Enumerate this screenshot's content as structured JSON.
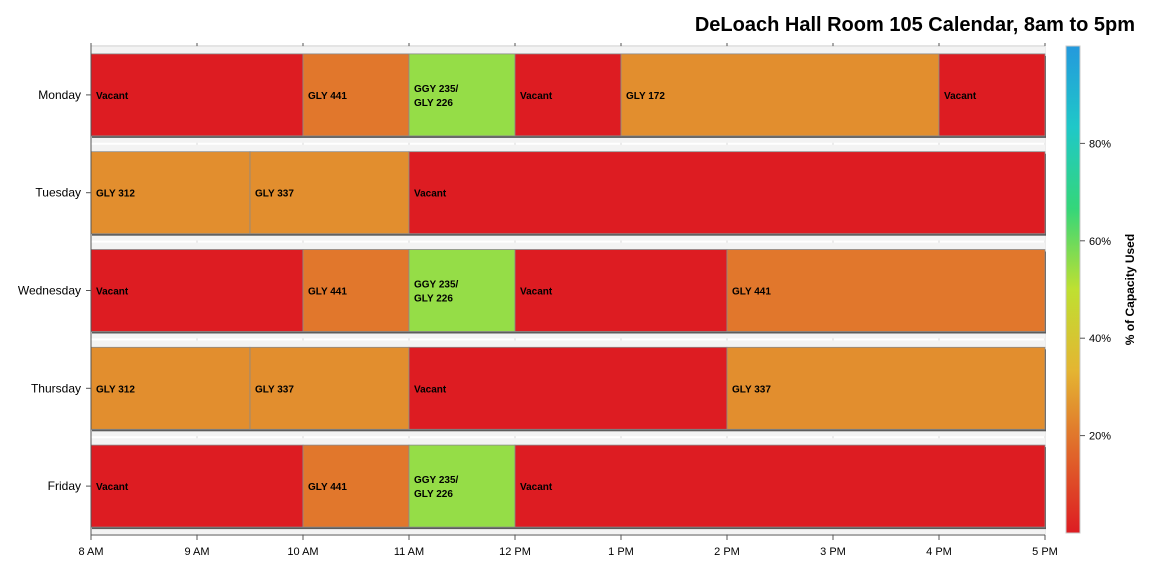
{
  "chart_data": {
    "type": "gantt",
    "title": "DeLoach Hall Room 105 Calendar, 8am to 5pm",
    "x_tick_labels": [
      "8 AM",
      "9 AM",
      "10 AM",
      "11 AM",
      "12 PM",
      "1 PM",
      "2 PM",
      "3 PM",
      "4 PM",
      "5 PM"
    ],
    "x_range_hours": [
      8,
      17
    ],
    "colorbar": {
      "label": "% of Capacity Used",
      "ticks": [
        "20%",
        "40%",
        "60%",
        "80%"
      ],
      "range": [
        0,
        100
      ],
      "colors": [
        "#dd1c22",
        "#e0672a",
        "#e4b532",
        "#bfe031",
        "#34d67a",
        "#1fc8c8",
        "#2499dd"
      ]
    },
    "days": [
      {
        "name": "Monday",
        "segments": [
          {
            "label": "Vacant",
            "start": 8,
            "end": 10,
            "capacity_pct": 0
          },
          {
            "label": "GLY 441",
            "start": 10,
            "end": 11,
            "capacity_pct": 20
          },
          {
            "label": "GGY 235/ GLY 226",
            "start": 11,
            "end": 12,
            "capacity_pct": 55
          },
          {
            "label": "Vacant",
            "start": 12,
            "end": 13,
            "capacity_pct": 0
          },
          {
            "label": "GLY 172",
            "start": 13,
            "end": 16,
            "capacity_pct": 25
          },
          {
            "label": "Vacant",
            "start": 16,
            "end": 17,
            "capacity_pct": 0
          }
        ]
      },
      {
        "name": "Tuesday",
        "segments": [
          {
            "label": "GLY 312",
            "start": 8,
            "end": 9.5,
            "capacity_pct": 25
          },
          {
            "label": "GLY 337",
            "start": 9.5,
            "end": 11,
            "capacity_pct": 25
          },
          {
            "label": "Vacant",
            "start": 11,
            "end": 17,
            "capacity_pct": 0
          }
        ]
      },
      {
        "name": "Wednesday",
        "segments": [
          {
            "label": "Vacant",
            "start": 8,
            "end": 10,
            "capacity_pct": 0
          },
          {
            "label": "GLY 441",
            "start": 10,
            "end": 11,
            "capacity_pct": 20
          },
          {
            "label": "GGY 235/ GLY 226",
            "start": 11,
            "end": 12,
            "capacity_pct": 55
          },
          {
            "label": "Vacant",
            "start": 12,
            "end": 14,
            "capacity_pct": 0
          },
          {
            "label": "GLY 441",
            "start": 14,
            "end": 17,
            "capacity_pct": 20
          }
        ]
      },
      {
        "name": "Thursday",
        "segments": [
          {
            "label": "GLY 312",
            "start": 8,
            "end": 9.5,
            "capacity_pct": 25
          },
          {
            "label": "GLY 337",
            "start": 9.5,
            "end": 11,
            "capacity_pct": 25
          },
          {
            "label": "Vacant",
            "start": 11,
            "end": 14,
            "capacity_pct": 0
          },
          {
            "label": "GLY 337",
            "start": 14,
            "end": 17,
            "capacity_pct": 25
          }
        ]
      },
      {
        "name": "Friday",
        "segments": [
          {
            "label": "Vacant",
            "start": 8,
            "end": 10,
            "capacity_pct": 0
          },
          {
            "label": "GLY 441",
            "start": 10,
            "end": 11,
            "capacity_pct": 20
          },
          {
            "label": "GGY 235/ GLY 226",
            "start": 11,
            "end": 12,
            "capacity_pct": 55
          },
          {
            "label": "Vacant",
            "start": 12,
            "end": 17,
            "capacity_pct": 0
          }
        ]
      }
    ]
  }
}
